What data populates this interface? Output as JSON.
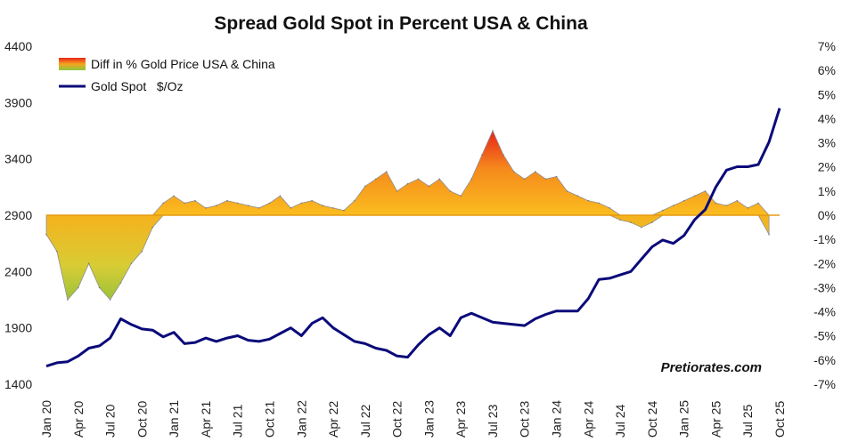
{
  "chart_data": {
    "type": "line",
    "title": "Spread Gold Spot in Percent USA & China",
    "watermark": "Pretiorates.com",
    "y_left": {
      "min": 1400,
      "max": 4400,
      "ticks": [
        "4400",
        "3900",
        "3400",
        "2900",
        "2400",
        "1900",
        "1400"
      ],
      "tick_values": [
        4400,
        3900,
        3400,
        2900,
        2400,
        1900,
        1400
      ]
    },
    "y_right": {
      "min": -7,
      "max": 7,
      "ticks": [
        "7%",
        "6%",
        "5%",
        "4%",
        "3%",
        "2%",
        "1%",
        "0%",
        "-1%",
        "-2%",
        "-3%",
        "-4%",
        "-5%",
        "-6%",
        "-7%"
      ],
      "tick_values": [
        7,
        6,
        5,
        4,
        3,
        2,
        1,
        0,
        -1,
        -2,
        -3,
        -4,
        -5,
        -6,
        -7
      ]
    },
    "x_axis": {
      "start": "2020-01",
      "end": "2025-10",
      "tick_labels": [
        "Jan 20",
        "Apr 20",
        "Jul 20",
        "Oct 20",
        "Jan 21",
        "Apr 21",
        "Jul 21",
        "Oct 21",
        "Jan 22",
        "Apr 22",
        "Jul 22",
        "Oct 22",
        "Jan 23",
        "Apr 23",
        "Jul 23",
        "Oct 23",
        "Jan 24",
        "Apr 24",
        "Jul 24",
        "Oct 24",
        "Jan 25",
        "Apr 25",
        "Jul 25",
        "Oct 25"
      ],
      "tick_months": [
        0,
        3,
        6,
        9,
        12,
        15,
        18,
        21,
        24,
        27,
        30,
        33,
        36,
        39,
        42,
        45,
        48,
        51,
        54,
        57,
        60,
        63,
        66,
        69
      ]
    },
    "series": [
      {
        "name": "Diff in % Gold Price USA & China",
        "axis": "right",
        "style": "area",
        "x_months": [
          0,
          1,
          2,
          3,
          4,
          5,
          6,
          7,
          8,
          9,
          10,
          11,
          12,
          13,
          14,
          15,
          16,
          17,
          18,
          19,
          20,
          21,
          22,
          23,
          24,
          25,
          26,
          27,
          28,
          29,
          30,
          31,
          32,
          33,
          34,
          35,
          36,
          37,
          38,
          39,
          40,
          41,
          42,
          43,
          44,
          45,
          46,
          47,
          48,
          49,
          50,
          51,
          52,
          53,
          54,
          55,
          56,
          57,
          58,
          59,
          60,
          61,
          62,
          63,
          64,
          65,
          66,
          67,
          68
        ],
        "values": [
          -0.8,
          -1.5,
          -3.5,
          -3.0,
          -2.0,
          -3.0,
          -3.5,
          -2.8,
          -2.0,
          -1.5,
          -0.5,
          0.5,
          0.8,
          0.5,
          0.6,
          0.3,
          0.4,
          0.6,
          0.5,
          0.4,
          0.3,
          0.5,
          0.8,
          0.3,
          0.5,
          0.6,
          0.4,
          0.3,
          0.2,
          0.6,
          1.2,
          1.5,
          1.8,
          1.0,
          1.3,
          1.5,
          1.2,
          1.5,
          1.0,
          0.8,
          1.5,
          2.5,
          3.5,
          2.5,
          1.8,
          1.5,
          1.8,
          1.5,
          1.6,
          1.0,
          0.8,
          0.6,
          0.5,
          0.3,
          -0.2,
          -0.3,
          -0.5,
          -0.3,
          0.2,
          0.4,
          0.6,
          0.8,
          1.0,
          0.5,
          0.4,
          0.6,
          0.3,
          0.5,
          -0.8
        ]
      },
      {
        "name": "Gold Spot   $/Oz",
        "axis": "left",
        "style": "line",
        "color": "#0a0a7a",
        "x_months": [
          0,
          1,
          2,
          3,
          4,
          5,
          6,
          7,
          8,
          9,
          10,
          11,
          12,
          13,
          14,
          15,
          16,
          17,
          18,
          19,
          20,
          21,
          22,
          23,
          24,
          25,
          26,
          27,
          28,
          29,
          30,
          31,
          32,
          33,
          34,
          35,
          36,
          37,
          38,
          39,
          40,
          41,
          42,
          43,
          44,
          45,
          46,
          47,
          48,
          49,
          50,
          51,
          52,
          53,
          54,
          55,
          56,
          57,
          58,
          59,
          60,
          61,
          62,
          63,
          64,
          65,
          66,
          67,
          68,
          69
        ],
        "values": [
          1560,
          1590,
          1600,
          1650,
          1720,
          1740,
          1810,
          1980,
          1930,
          1890,
          1880,
          1820,
          1860,
          1760,
          1770,
          1810,
          1780,
          1810,
          1830,
          1790,
          1780,
          1800,
          1850,
          1900,
          1830,
          1940,
          1990,
          1900,
          1840,
          1780,
          1760,
          1720,
          1700,
          1650,
          1640,
          1750,
          1840,
          1900,
          1830,
          1990,
          2030,
          1990,
          1950,
          1940,
          1930,
          1920,
          1980,
          2020,
          2050,
          2050,
          2050,
          2160,
          2330,
          2340,
          2370,
          2400,
          2510,
          2620,
          2680,
          2650,
          2720,
          2860,
          2950,
          3150,
          3300,
          3330,
          3330,
          3350,
          3550,
          3850
        ]
      }
    ]
  }
}
